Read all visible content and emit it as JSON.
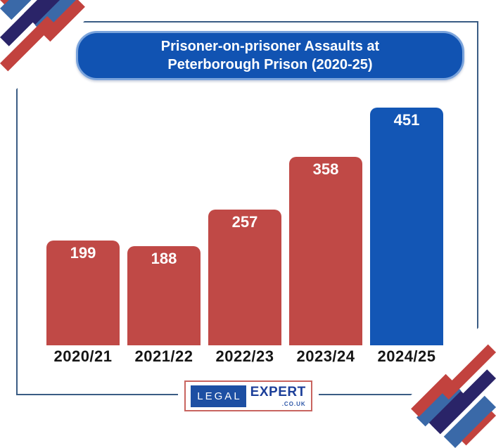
{
  "title": {
    "line1": "Prisoner-on-prisoner Assaults at",
    "line2": "Peterborough Prison (2020-25)"
  },
  "chart_data": {
    "type": "bar",
    "title": "Prisoner-on-prisoner Assaults at Peterborough Prison (2020-25)",
    "categories": [
      "2020/21",
      "2021/22",
      "2022/23",
      "2023/24",
      "2024/25"
    ],
    "values": [
      199,
      188,
      257,
      358,
      451
    ],
    "xlabel": "",
    "ylabel": "",
    "ylim": [
      0,
      480
    ],
    "grid": false,
    "legend_position": "none",
    "value_labels": "inside-top",
    "bar_colors": [
      "#C04946",
      "#C04946",
      "#C04946",
      "#C04946",
      "#1356B5"
    ],
    "value_label_color": "#FFFFFF"
  },
  "logo": {
    "legal": "LEGAL",
    "expert": "EXPERT",
    "domain": ".CO.UK"
  },
  "colors": {
    "bar_red": "#C04946",
    "bar_blue": "#1356B5",
    "title_bg": "#1153B2",
    "title_border": "#7BA4DC",
    "frame": "#3A5C84",
    "stripe_red": "#C2423E",
    "stripe_blue": "#3A69A8",
    "stripe_navy": "#2A2468",
    "logo_border": "#C8645F",
    "logo_blue": "#1D4FA3",
    "logo_text_blue": "#1C3F99",
    "axis_label": "#151515"
  }
}
